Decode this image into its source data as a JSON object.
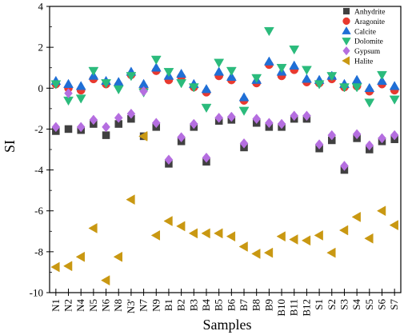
{
  "chart_data": {
    "type": "scatter",
    "title": "",
    "xlabel": "Samples",
    "ylabel": "SI",
    "ylim": [
      -10,
      4
    ],
    "yticks": [
      4,
      2,
      0,
      -2,
      -4,
      -6,
      -8,
      -10
    ],
    "grid": false,
    "legend_position": "top-right",
    "categories": [
      "N1",
      "N2",
      "N4",
      "N5",
      "N6",
      "N8",
      "N3'",
      "N7",
      "N9",
      "B1",
      "B2",
      "B3",
      "B4",
      "B5",
      "B6",
      "B7",
      "B8",
      "B9",
      "B10",
      "B11",
      "B12",
      "S1",
      "S2",
      "S3",
      "S4",
      "S5",
      "S6",
      "S7"
    ],
    "series": [
      {
        "name": "Anhydrite",
        "color": "#404040",
        "marker": "square",
        "values": [
          -2.1,
          -2.0,
          -2.05,
          -1.75,
          -2.3,
          -1.75,
          -1.5,
          -2.35,
          -1.9,
          -3.7,
          -2.6,
          -1.9,
          -3.6,
          -1.6,
          -1.55,
          -2.9,
          -1.7,
          -1.9,
          -1.9,
          -1.5,
          -1.5,
          -2.95,
          -2.55,
          -4.0,
          -2.45,
          -3.0,
          -2.6,
          -2.5
        ]
      },
      {
        "name": "Aragonite",
        "color": "#e8392f",
        "marker": "circle",
        "values": [
          0.2,
          0.0,
          -0.1,
          0.45,
          0.2,
          0.15,
          0.65,
          0.05,
          0.85,
          0.4,
          0.55,
          0.05,
          -0.2,
          0.6,
          0.4,
          -0.6,
          0.25,
          1.15,
          0.6,
          0.9,
          0.3,
          0.25,
          0.45,
          0.05,
          0.1,
          -0.15,
          0.2,
          -0.1
        ]
      },
      {
        "name": "Calcite",
        "color": "#1f6fd6",
        "marker": "triangle-up",
        "values": [
          0.35,
          0.2,
          0.1,
          0.6,
          0.35,
          0.3,
          0.8,
          0.2,
          1.0,
          0.6,
          0.7,
          0.2,
          -0.05,
          0.8,
          0.55,
          -0.45,
          0.4,
          1.3,
          0.8,
          1.1,
          0.45,
          0.4,
          0.6,
          0.2,
          0.4,
          0.0,
          0.35,
          0.1
        ]
      },
      {
        "name": "Dolomite",
        "color": "#2bbb7c",
        "marker": "triangle-down",
        "values": [
          0.2,
          -0.6,
          -0.5,
          0.85,
          0.25,
          -0.05,
          0.6,
          -0.2,
          1.4,
          0.8,
          0.25,
          0.05,
          -0.95,
          1.25,
          0.85,
          -1.1,
          0.5,
          2.8,
          1.0,
          1.9,
          0.9,
          0.2,
          0.6,
          0.05,
          0.05,
          -0.7,
          0.65,
          -0.55
        ]
      },
      {
        "name": "Gypsum",
        "color": "#b56ee0",
        "marker": "diamond",
        "values": [
          -1.9,
          -0.25,
          -1.9,
          -1.55,
          -1.9,
          -1.45,
          -1.25,
          -0.15,
          -1.7,
          -3.5,
          -2.4,
          -1.75,
          -3.4,
          -1.45,
          -1.4,
          -2.7,
          -1.5,
          -1.7,
          -1.75,
          -1.35,
          -1.35,
          -2.75,
          -2.3,
          -3.8,
          -2.25,
          -2.8,
          -2.45,
          -2.3
        ]
      },
      {
        "name": "Halite",
        "color": "#c99812",
        "marker": "triangle-left",
        "values": [
          -8.75,
          -8.7,
          -8.25,
          -6.85,
          -9.4,
          -8.25,
          -5.45,
          -2.35,
          -7.2,
          -6.5,
          -6.75,
          -7.1,
          -7.1,
          -7.1,
          -7.25,
          -7.75,
          -8.1,
          -8.05,
          -7.25,
          -7.4,
          -7.45,
          -7.2,
          -8.05,
          -6.95,
          -6.3,
          -7.35,
          -6.0,
          -6.7
        ]
      }
    ]
  }
}
